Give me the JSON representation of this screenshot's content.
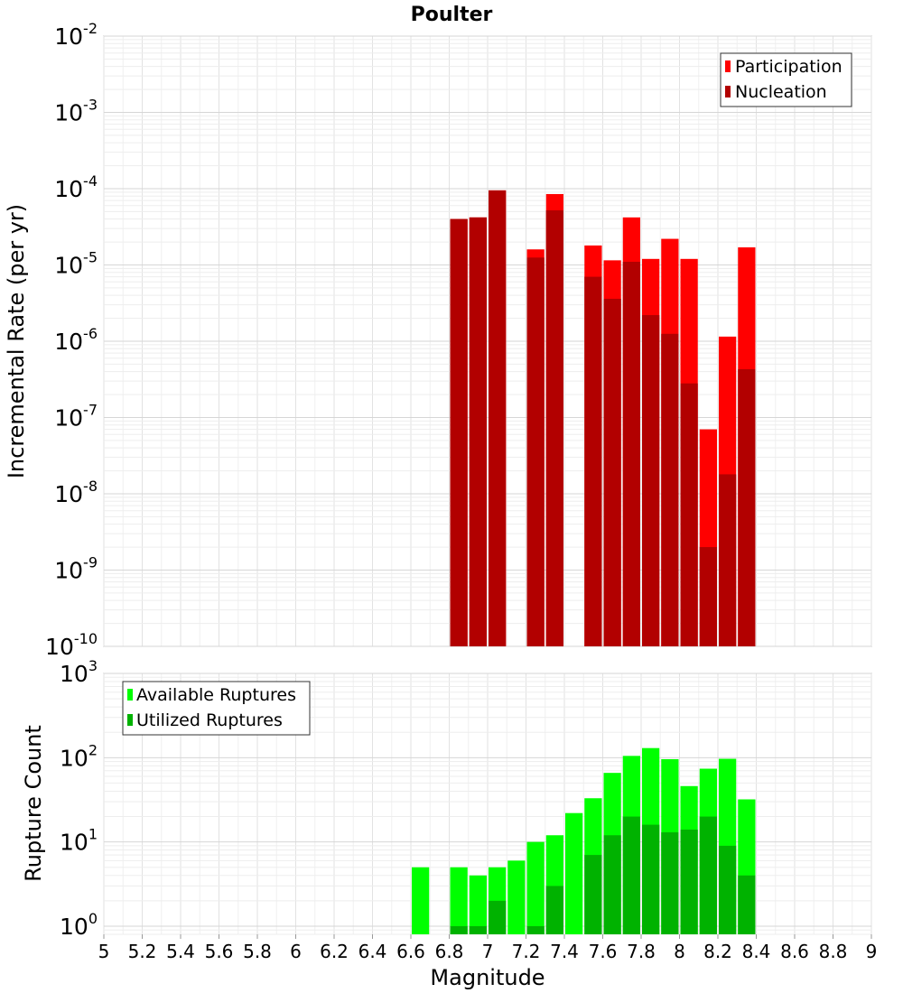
{
  "chart_data": [
    {
      "type": "bar",
      "title": "Poulter",
      "xlabel": "Magnitude",
      "ylabel": "Incremental Rate (per yr)",
      "yscale": "log",
      "ylim": [
        1e-10,
        0.01
      ],
      "xlim": [
        5,
        9
      ],
      "ytick_exponents": [
        "-10",
        "-9",
        "-8",
        "-7",
        "-6",
        "-5",
        "-4",
        "-3",
        "-2"
      ],
      "ytick_base": "10",
      "legend_position": "top-right",
      "series": [
        {
          "name": "Participation",
          "color": "#ff0000",
          "x": [
            6.85,
            6.95,
            7.05,
            7.25,
            7.35,
            7.55,
            7.65,
            7.75,
            7.85,
            7.95,
            8.05,
            8.15,
            8.25,
            8.35
          ],
          "values": [
            4e-05,
            4.2e-05,
            9.5e-05,
            1.6e-05,
            8.5e-05,
            1.8e-05,
            1.15e-05,
            4.2e-05,
            1.2e-05,
            2.2e-05,
            1.2e-05,
            7e-08,
            1.15e-06,
            1.7e-05
          ]
        },
        {
          "name": "Nucleation",
          "color": "#b20000",
          "x": [
            6.85,
            6.95,
            7.05,
            7.25,
            7.35,
            7.55,
            7.65,
            7.75,
            7.85,
            7.95,
            8.05,
            8.15,
            8.25,
            8.35
          ],
          "values": [
            4e-05,
            4.2e-05,
            9.5e-05,
            1.25e-05,
            5.2e-05,
            7e-06,
            3.6e-06,
            1.1e-05,
            2.2e-06,
            1.25e-06,
            2.8e-07,
            2e-09,
            1.8e-08,
            4.3e-07
          ]
        }
      ]
    },
    {
      "type": "bar",
      "title": "",
      "xlabel": "Magnitude",
      "ylabel": "Rupture Count",
      "yscale": "log",
      "ylim": [
        0.8,
        1000
      ],
      "xlim": [
        5,
        9
      ],
      "ytick_exponents": [
        "0",
        "1",
        "2",
        "3"
      ],
      "ytick_base": "10",
      "xticks": [
        "5",
        "5.2",
        "5.4",
        "5.6",
        "5.8",
        "6",
        "6.2",
        "6.4",
        "6.6",
        "6.8",
        "7",
        "7.2",
        "7.4",
        "7.6",
        "7.8",
        "8",
        "8.2",
        "8.4",
        "8.6",
        "8.8",
        "9"
      ],
      "legend_position": "top-left",
      "series": [
        {
          "name": "Available Ruptures",
          "color": "#00ff00",
          "x": [
            6.65,
            6.85,
            6.95,
            7.05,
            7.15,
            7.25,
            7.35,
            7.45,
            7.55,
            7.65,
            7.75,
            7.85,
            7.95,
            8.05,
            8.15,
            8.25,
            8.35
          ],
          "values": [
            5,
            5,
            4,
            5,
            6,
            10,
            12,
            22,
            33,
            66,
            105,
            130,
            96,
            46,
            74,
            97,
            32
          ]
        },
        {
          "name": "Utilized Ruptures",
          "color": "#00b200",
          "x": [
            6.85,
            6.95,
            7.05,
            7.25,
            7.35,
            7.55,
            7.65,
            7.75,
            7.85,
            7.95,
            8.05,
            8.15,
            8.25,
            8.35
          ],
          "values": [
            1,
            1,
            2,
            1,
            3,
            7,
            12,
            20,
            16,
            13,
            14,
            20,
            9,
            4
          ]
        }
      ]
    }
  ]
}
